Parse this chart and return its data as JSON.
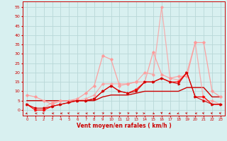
{
  "xlabel": "Vent moyen/en rafales ( km/h )",
  "xlim": [
    -0.5,
    23.5
  ],
  "ylim": [
    -3,
    58
  ],
  "yticks": [
    0,
    5,
    10,
    15,
    20,
    25,
    30,
    35,
    40,
    45,
    50,
    55
  ],
  "xticks": [
    0,
    1,
    2,
    3,
    4,
    5,
    6,
    7,
    8,
    9,
    10,
    11,
    12,
    13,
    14,
    15,
    16,
    17,
    18,
    19,
    20,
    21,
    22,
    23
  ],
  "bg_color": "#d8f0f0",
  "grid_color": "#b8d8d8",
  "pink": "#ff9999",
  "darkred": "#cc0000",
  "red": "#ff0000",
  "line1_y": [
    8,
    7,
    5,
    3,
    5,
    5,
    6,
    9,
    13,
    29,
    27,
    13,
    14,
    15,
    15,
    31,
    19,
    17,
    18,
    18,
    36,
    36,
    10,
    7
  ],
  "line2_y": [
    3,
    1,
    1,
    4,
    5,
    5,
    5,
    6,
    8,
    14,
    14,
    14,
    14,
    15,
    20,
    19,
    55,
    17,
    16,
    20,
    36,
    5,
    5,
    3
  ],
  "line3_y": [
    3,
    0,
    0,
    2,
    3,
    4,
    5,
    5,
    6,
    10,
    13,
    10,
    9,
    11,
    15,
    15,
    17,
    15,
    15,
    20,
    7,
    7,
    3,
    3
  ],
  "line4_y": [
    5,
    5,
    5,
    5,
    5,
    5,
    5,
    5,
    5,
    7,
    8,
    8,
    8,
    9,
    10,
    10,
    10,
    10,
    10,
    12,
    12,
    12,
    7,
    7
  ],
  "line5_y": [
    3,
    1,
    1,
    2,
    3,
    4,
    5,
    5,
    6,
    10,
    13,
    10,
    9,
    10,
    15,
    15,
    17,
    15,
    14,
    20,
    7,
    5,
    3,
    3
  ],
  "wind_dirs": [
    225,
    270,
    315,
    270,
    270,
    315,
    270,
    270,
    315,
    45,
    45,
    45,
    45,
    45,
    90,
    135,
    180,
    225,
    225,
    315,
    270,
    315,
    315,
    315
  ]
}
